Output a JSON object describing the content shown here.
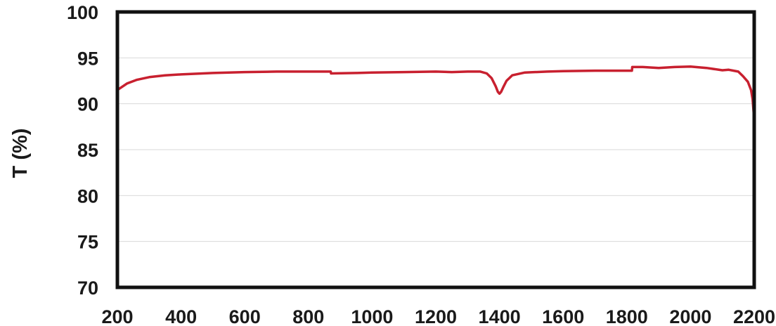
{
  "chart_data": {
    "type": "line",
    "title": "",
    "xlabel": "",
    "ylabel": "T (%)",
    "xlim": [
      200,
      2200
    ],
    "ylim": [
      70,
      100
    ],
    "xticks": [
      "200",
      "400",
      "600",
      "800",
      "1000",
      "1200",
      "1400",
      "1600",
      "1800",
      "2000",
      "2200"
    ],
    "yticks": [
      "100",
      "95",
      "90",
      "85",
      "80",
      "75",
      "70"
    ],
    "grid": true,
    "line_color": "#c8202f",
    "series": [
      {
        "x": [
          200,
          230,
          260,
          300,
          350,
          400,
          500,
          600,
          700,
          800,
          870,
          871,
          950,
          1000,
          1100,
          1200,
          1250,
          1300,
          1340,
          1360,
          1375,
          1388,
          1395,
          1400,
          1405,
          1412,
          1422,
          1440,
          1480,
          1550,
          1600,
          1700,
          1800,
          1816,
          1817,
          1850,
          1900,
          1950,
          2000,
          2050,
          2100,
          2120,
          2150,
          2165,
          2180,
          2190,
          2195,
          2200
        ],
        "y": [
          91.5,
          92.2,
          92.6,
          92.9,
          93.1,
          93.2,
          93.35,
          93.45,
          93.5,
          93.5,
          93.5,
          93.3,
          93.35,
          93.4,
          93.45,
          93.5,
          93.45,
          93.5,
          93.5,
          93.3,
          92.8,
          91.9,
          91.3,
          91.1,
          91.3,
          91.8,
          92.5,
          93.1,
          93.4,
          93.5,
          93.55,
          93.6,
          93.6,
          93.6,
          94.0,
          94.0,
          93.9,
          94.0,
          94.05,
          93.9,
          93.65,
          93.7,
          93.5,
          93.0,
          92.4,
          91.5,
          90.5,
          88.3
        ]
      }
    ]
  }
}
